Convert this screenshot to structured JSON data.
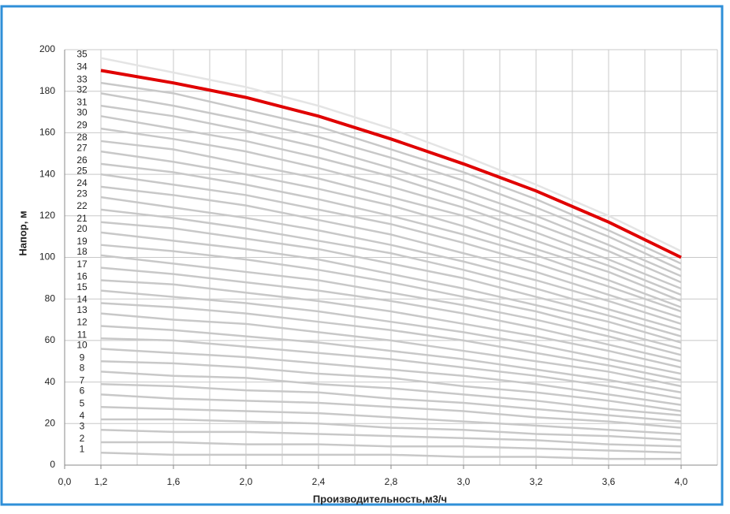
{
  "chart_data": {
    "type": "line",
    "y_label": "Напор, м",
    "x_label": "Производительность,м3/ч",
    "categories": [
      "0,0",
      "1,2",
      "1,6",
      "2,0",
      "2,4",
      "2,8",
      "3,0",
      "3,2",
      "3,6",
      "4,0"
    ],
    "ylim": [
      0,
      200
    ],
    "yticks": [
      0,
      20,
      40,
      60,
      80,
      100,
      120,
      140,
      160,
      180,
      200
    ],
    "grid": true,
    "series": [
      {
        "name": "1",
        "color": "#c8c8c8",
        "values": [
          null,
          6,
          5,
          5,
          5,
          5,
          4,
          4,
          3,
          3
        ]
      },
      {
        "name": "2",
        "color": "#c8c8c8",
        "values": [
          null,
          11,
          11,
          10,
          10,
          9,
          9,
          8,
          7,
          6
        ]
      },
      {
        "name": "3",
        "color": "#c8c8c8",
        "values": [
          null,
          17,
          16,
          16,
          15,
          14,
          13,
          12,
          10,
          9
        ]
      },
      {
        "name": "4",
        "color": "#c8c8c8",
        "values": [
          null,
          22,
          22,
          21,
          20,
          18,
          17,
          15,
          14,
          12
        ]
      },
      {
        "name": "5",
        "color": "#c8c8c8",
        "values": [
          null,
          28,
          27,
          26,
          25,
          23,
          21,
          19,
          17,
          15
        ]
      },
      {
        "name": "6",
        "color": "#c8c8c8",
        "values": [
          null,
          34,
          32,
          31,
          30,
          28,
          26,
          23,
          21,
          18
        ]
      },
      {
        "name": "7",
        "color": "#c8c8c8",
        "values": [
          null,
          39,
          38,
          36,
          35,
          32,
          30,
          27,
          24,
          21
        ]
      },
      {
        "name": "8",
        "color": "#c8c8c8",
        "values": [
          null,
          45,
          43,
          42,
          39,
          37,
          34,
          31,
          27,
          24
        ]
      },
      {
        "name": "9",
        "color": "#c8c8c8",
        "values": [
          null,
          50,
          49,
          47,
          44,
          42,
          38,
          35,
          31,
          26
        ]
      },
      {
        "name": "10",
        "color": "#c8c8c8",
        "values": [
          null,
          56,
          54,
          52,
          49,
          46,
          43,
          39,
          34,
          29
        ]
      },
      {
        "name": "11",
        "color": "#c8c8c8",
        "values": [
          null,
          61,
          60,
          57,
          54,
          51,
          47,
          43,
          38,
          32
        ]
      },
      {
        "name": "12",
        "color": "#c8c8c8",
        "values": [
          null,
          67,
          65,
          62,
          59,
          55,
          51,
          46,
          41,
          35
        ]
      },
      {
        "name": "13",
        "color": "#c8c8c8",
        "values": [
          null,
          73,
          70,
          68,
          64,
          60,
          55,
          50,
          45,
          38
        ]
      },
      {
        "name": "14",
        "color": "#c8c8c8",
        "values": [
          null,
          78,
          76,
          73,
          69,
          65,
          60,
          54,
          48,
          41
        ]
      },
      {
        "name": "15",
        "color": "#c8c8c8",
        "values": [
          null,
          84,
          81,
          78,
          74,
          69,
          64,
          58,
          51,
          44
        ]
      },
      {
        "name": "16",
        "color": "#c8c8c8",
        "values": [
          null,
          89,
          87,
          83,
          79,
          74,
          68,
          62,
          55,
          47
        ]
      },
      {
        "name": "17",
        "color": "#c8c8c8",
        "values": [
          null,
          95,
          92,
          88,
          84,
          79,
          73,
          66,
          58,
          50
        ]
      },
      {
        "name": "18",
        "color": "#c8c8c8",
        "values": [
          null,
          101,
          97,
          93,
          89,
          83,
          77,
          70,
          62,
          53
        ]
      },
      {
        "name": "19",
        "color": "#c8c8c8",
        "values": [
          null,
          106,
          103,
          99,
          94,
          88,
          81,
          74,
          65,
          56
        ]
      },
      {
        "name": "20",
        "color": "#c8c8c8",
        "values": [
          null,
          112,
          108,
          104,
          99,
          92,
          85,
          77,
          69,
          59
        ]
      },
      {
        "name": "21",
        "color": "#c8c8c8",
        "values": [
          null,
          117,
          114,
          109,
          104,
          97,
          90,
          81,
          72,
          62
        ]
      },
      {
        "name": "22",
        "color": "#c8c8c8",
        "values": [
          null,
          123,
          119,
          114,
          108,
          102,
          94,
          85,
          75,
          65
        ]
      },
      {
        "name": "23",
        "color": "#c8c8c8",
        "values": [
          null,
          129,
          124,
          119,
          113,
          106,
          98,
          89,
          79,
          68
        ]
      },
      {
        "name": "24",
        "color": "#c8c8c8",
        "values": [
          null,
          134,
          130,
          125,
          118,
          111,
          102,
          93,
          82,
          71
        ]
      },
      {
        "name": "25",
        "color": "#c8c8c8",
        "values": [
          null,
          140,
          135,
          130,
          123,
          116,
          107,
          97,
          86,
          74
        ]
      },
      {
        "name": "26",
        "color": "#c8c8c8",
        "values": [
          null,
          145,
          141,
          135,
          128,
          120,
          111,
          101,
          89,
          76
        ]
      },
      {
        "name": "27",
        "color": "#c8c8c8",
        "values": [
          null,
          151,
          146,
          140,
          133,
          125,
          115,
          104,
          93,
          79
        ]
      },
      {
        "name": "28",
        "color": "#c8c8c8",
        "values": [
          null,
          156,
          152,
          145,
          138,
          129,
          120,
          108,
          96,
          82
        ]
      },
      {
        "name": "29",
        "color": "#c8c8c8",
        "values": [
          null,
          162,
          157,
          151,
          143,
          134,
          124,
          112,
          99,
          85
        ]
      },
      {
        "name": "30",
        "color": "#c8c8c8",
        "values": [
          null,
          168,
          162,
          156,
          148,
          139,
          128,
          116,
          103,
          88
        ]
      },
      {
        "name": "31",
        "color": "#c8c8c8",
        "values": [
          null,
          173,
          168,
          161,
          153,
          143,
          132,
          120,
          106,
          91
        ]
      },
      {
        "name": "32",
        "color": "#c8c8c8",
        "values": [
          null,
          179,
          173,
          166,
          158,
          148,
          137,
          124,
          110,
          94
        ]
      },
      {
        "name": "33",
        "color": "#c8c8c8",
        "values": [
          null,
          184,
          179,
          171,
          163,
          152,
          141,
          128,
          113,
          97
        ]
      },
      {
        "name": "34",
        "color": "#e00000",
        "values": [
          null,
          190,
          184,
          177,
          168,
          157,
          145,
          132,
          117,
          100
        ]
      },
      {
        "name": "35",
        "color": "#e4e4e4",
        "values": [
          null,
          196,
          189,
          182,
          173,
          162,
          149,
          135,
          120,
          103
        ]
      }
    ]
  }
}
